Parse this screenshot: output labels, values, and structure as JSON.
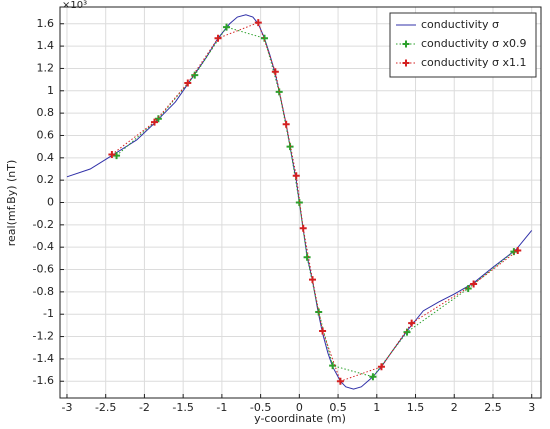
{
  "chart_data": {
    "type": "line",
    "y_multiplier": "×10³",
    "x_label": "y-coordinate (m)",
    "y_label": "real(mf.By) (nT)",
    "xlim": [
      -3.09,
      3.12
    ],
    "ylim": [
      -1.75,
      1.75
    ],
    "xticks": [
      -3,
      -2.5,
      -2,
      -1.5,
      -1,
      -0.5,
      0,
      0.5,
      1,
      1.5,
      2,
      2.5,
      3
    ],
    "yticks": [
      -1.6,
      -1.4,
      -1.2,
      -1,
      -0.8,
      -0.6,
      -0.4,
      -0.2,
      0,
      0.2,
      0.4,
      0.6,
      0.8,
      1,
      1.2,
      1.4,
      1.6
    ],
    "grid": true,
    "legend": "top-right",
    "series": [
      {
        "name": "conductivity σ",
        "color": "#3030a8",
        "line_style": "solid",
        "marker": "none",
        "x": [
          -3,
          -2.7,
          -2.42,
          -2.1,
          -1.87,
          -1.6,
          -1.44,
          -1.2,
          -1.05,
          -0.9,
          -0.8,
          -0.69,
          -0.6,
          -0.53,
          -0.45,
          -0.38,
          -0.31,
          -0.24,
          -0.17,
          -0.1,
          -0.04,
          0,
          0.05,
          0.1,
          0.17,
          0.24,
          0.3,
          0.37,
          0.43,
          0.53,
          0.6,
          0.7,
          0.8,
          0.95,
          1.06,
          1.2,
          1.39,
          1.6,
          1.8,
          2.0,
          2.25,
          2.5,
          2.8,
          3
        ],
        "values": [
          0.23,
          0.3,
          0.42,
          0.56,
          0.71,
          0.9,
          1.06,
          1.3,
          1.47,
          1.6,
          1.66,
          1.68,
          1.66,
          1.6,
          1.47,
          1.32,
          1.15,
          0.93,
          0.7,
          0.42,
          0.2,
          0,
          -0.24,
          -0.48,
          -0.7,
          -0.97,
          -1.17,
          -1.35,
          -1.47,
          -1.6,
          -1.65,
          -1.67,
          -1.65,
          -1.56,
          -1.47,
          -1.33,
          -1.15,
          -0.97,
          -0.89,
          -0.82,
          -0.72,
          -0.58,
          -0.42,
          -0.25
        ]
      },
      {
        "name": "conductivity σ x0.9",
        "color": "#2ca02c",
        "line_style": "dotted",
        "marker": "plus",
        "x": [
          -2.36,
          -1.82,
          -1.35,
          -0.94,
          -0.45,
          -0.26,
          -0.12,
          0,
          0.1,
          0.25,
          0.43,
          0.95,
          1.39,
          2.18,
          2.77
        ],
        "values": [
          0.42,
          0.75,
          1.14,
          1.57,
          1.47,
          0.99,
          0.5,
          0,
          -0.49,
          -0.98,
          -1.46,
          -1.56,
          -1.16,
          -0.77,
          -0.44
        ]
      },
      {
        "name": "conductivity σ x1.1",
        "color": "#d42020",
        "line_style": "dotted",
        "marker": "plus",
        "x": [
          -2.42,
          -1.87,
          -1.44,
          -1.05,
          -0.53,
          -0.31,
          -0.17,
          -0.04,
          0.05,
          0.17,
          0.3,
          0.53,
          1.06,
          1.45,
          2.25,
          2.82
        ],
        "values": [
          0.43,
          0.72,
          1.07,
          1.47,
          1.61,
          1.17,
          0.7,
          0.24,
          -0.23,
          -0.69,
          -1.15,
          -1.6,
          -1.47,
          -1.08,
          -0.73,
          -0.43
        ]
      }
    ]
  }
}
